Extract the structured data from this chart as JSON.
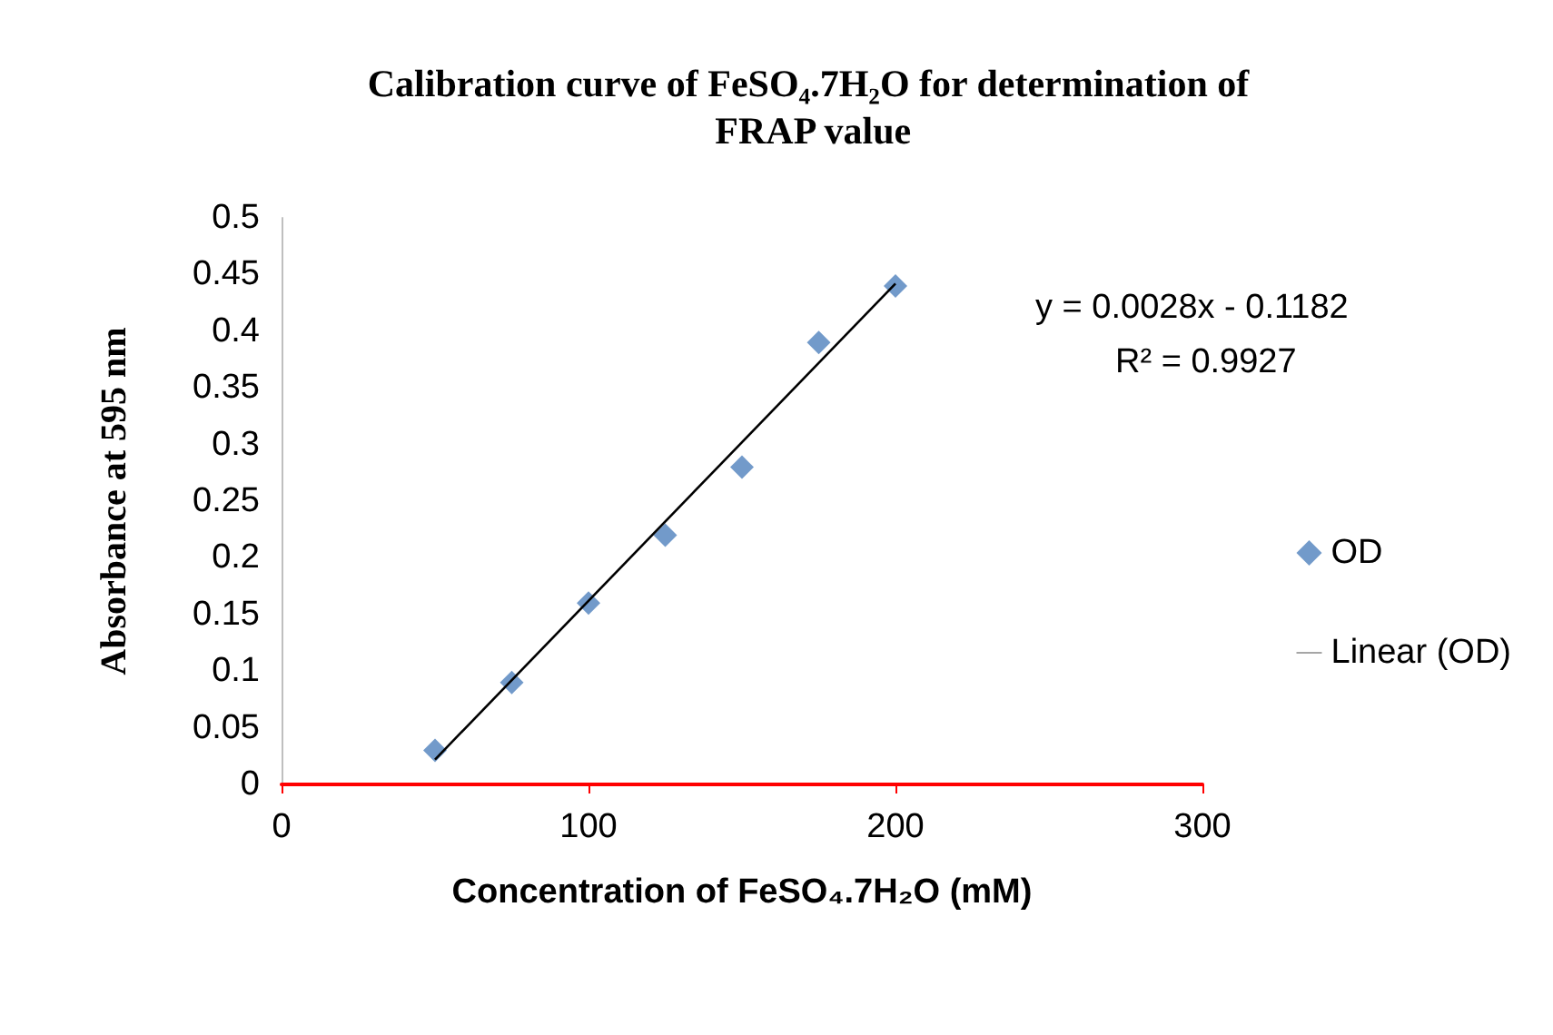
{
  "chart_data": {
    "type": "scatter",
    "title": "Calibration curve of FeSO₄.7H₂O for determination of FRAP value",
    "xlabel": "Concentration of FeSO₄.7H₂O (mM)",
    "ylabel": "Absorbance at 595 nm",
    "series": [
      {
        "name": "OD",
        "marker": "diamond",
        "color": "#4f81bd",
        "x": [
          50,
          75,
          100,
          125,
          150,
          175,
          200
        ],
        "values": [
          0.03,
          0.09,
          0.16,
          0.22,
          0.28,
          0.39,
          0.44
        ]
      },
      {
        "name": "Linear (OD)",
        "type": "line",
        "marker": "none",
        "line_style": "solid",
        "color": "#000000",
        "x": [
          50,
          200
        ],
        "values": [
          0.022,
          0.442
        ]
      }
    ],
    "xlim": [
      0,
      300
    ],
    "xticks": [
      0,
      100,
      200,
      300
    ],
    "ylim": [
      0,
      0.5
    ],
    "yticks": [
      0,
      0.05,
      0.1,
      0.15,
      0.2,
      0.25,
      0.3,
      0.35,
      0.4,
      0.45,
      0.5
    ],
    "annotations": [
      "y = 0.0028x - 0.1182",
      "R² = 0.9927"
    ],
    "legend": "right"
  }
}
